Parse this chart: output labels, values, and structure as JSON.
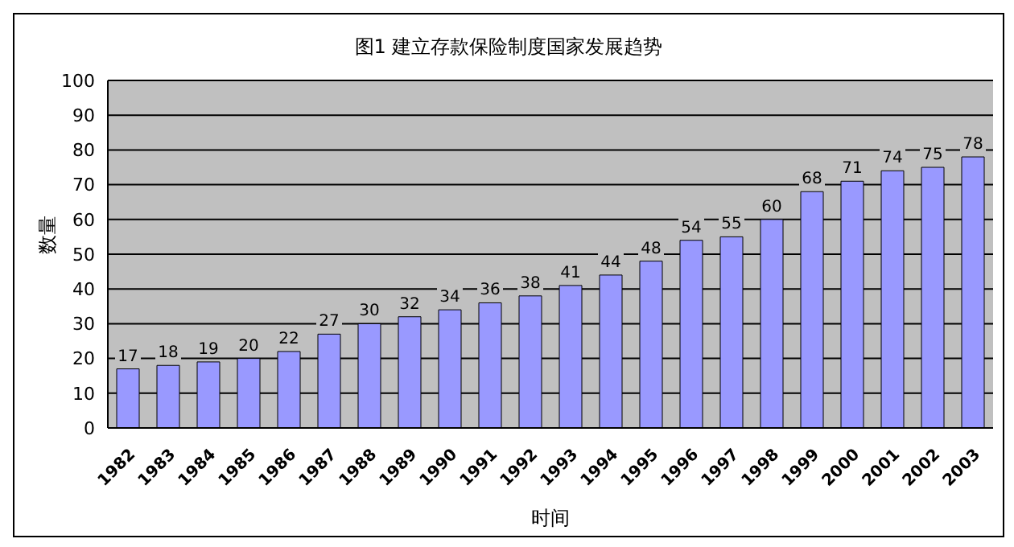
{
  "chart_data": {
    "type": "bar",
    "title": "图1  建立存款保险制度国家发展趋势",
    "xlabel": "时间",
    "ylabel": "数量",
    "categories": [
      "1982",
      "1983",
      "1984",
      "1985",
      "1986",
      "1987",
      "1988",
      "1989",
      "1990",
      "1991",
      "1992",
      "1993",
      "1994",
      "1995",
      "1996",
      "1997",
      "1998",
      "1999",
      "2000",
      "2001",
      "2002",
      "2003"
    ],
    "values": [
      17,
      18,
      19,
      20,
      22,
      27,
      30,
      32,
      34,
      36,
      38,
      41,
      44,
      48,
      54,
      55,
      60,
      68,
      71,
      74,
      75,
      78
    ],
    "color": "#9999ff",
    "ylim": [
      0,
      100
    ],
    "yticks": [
      0,
      10,
      20,
      30,
      40,
      50,
      60,
      70,
      80,
      90,
      100
    ],
    "grid": "y",
    "data_labels": true
  }
}
